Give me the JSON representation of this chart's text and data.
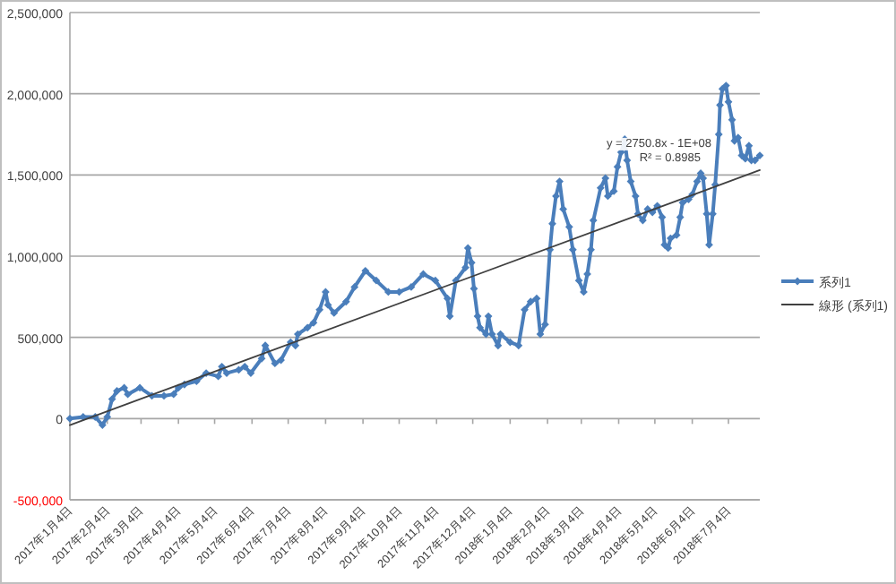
{
  "chart_data": {
    "type": "line",
    "ylim": [
      -500000,
      2500000
    ],
    "yticks": [
      {
        "value": -500000,
        "label": "-500,000"
      },
      {
        "value": 0,
        "label": "0"
      },
      {
        "value": 500000,
        "label": "500,000"
      },
      {
        "value": 1000000,
        "label": "1,000,000"
      },
      {
        "value": 1500000,
        "label": "1,500,000"
      },
      {
        "value": 2000000,
        "label": "2,000,000"
      },
      {
        "value": 2500000,
        "label": "2,500,000"
      }
    ],
    "xlim": [
      "2017-01-04",
      "2018-07-30"
    ],
    "xticks": [
      {
        "value": "2017-01-04",
        "label": "2017年1月4日"
      },
      {
        "value": "2017-02-04",
        "label": "2017年2月4日"
      },
      {
        "value": "2017-03-04",
        "label": "2017年3月4日"
      },
      {
        "value": "2017-04-04",
        "label": "2017年4月4日"
      },
      {
        "value": "2017-05-04",
        "label": "2017年5月4日"
      },
      {
        "value": "2017-06-04",
        "label": "2017年6月4日"
      },
      {
        "value": "2017-07-04",
        "label": "2017年7月4日"
      },
      {
        "value": "2017-08-04",
        "label": "2017年8月4日"
      },
      {
        "value": "2017-09-04",
        "label": "2017年9月4日"
      },
      {
        "value": "2017-10-04",
        "label": "2017年10月4日"
      },
      {
        "value": "2017-11-04",
        "label": "2017年11月4日"
      },
      {
        "value": "2017-12-04",
        "label": "2017年12月4日"
      },
      {
        "value": "2018-01-04",
        "label": "2018年1月4日"
      },
      {
        "value": "2018-02-04",
        "label": "2018年2月4日"
      },
      {
        "value": "2018-03-04",
        "label": "2018年3月4日"
      },
      {
        "value": "2018-04-04",
        "label": "2018年4月4日"
      },
      {
        "value": "2018-05-04",
        "label": "2018年5月4日"
      },
      {
        "value": "2018-06-04",
        "label": "2018年6月4日"
      },
      {
        "value": "2018-07-04",
        "label": "2018年7月4日"
      }
    ],
    "grid": "y",
    "legend": "right",
    "annotations": [
      "y = 2750.8x - 1E+08",
      "R² = 0.8985"
    ],
    "series": [
      {
        "name": "系列1",
        "color": "#4a7ebb",
        "marker": "diamond",
        "x": [
          "2017-01-04",
          "2017-01-15",
          "2017-01-25",
          "2017-01-31",
          "2017-02-04",
          "2017-02-08",
          "2017-02-12",
          "2017-02-18",
          "2017-02-21",
          "2017-03-03",
          "2017-03-13",
          "2017-03-23",
          "2017-03-31",
          "2017-04-04",
          "2017-04-09",
          "2017-04-19",
          "2017-04-27",
          "2017-05-07",
          "2017-05-10",
          "2017-05-14",
          "2017-05-24",
          "2017-05-29",
          "2017-06-03",
          "2017-06-12",
          "2017-06-15",
          "2017-06-23",
          "2017-06-28",
          "2017-07-06",
          "2017-07-10",
          "2017-07-12",
          "2017-07-20",
          "2017-07-25",
          "2017-07-30",
          "2017-08-04",
          "2017-08-06",
          "2017-08-11",
          "2017-08-21",
          "2017-08-28",
          "2017-09-06",
          "2017-09-15",
          "2017-09-25",
          "2017-10-04",
          "2017-10-14",
          "2017-10-24",
          "2017-11-03",
          "2017-11-13",
          "2017-11-15",
          "2017-11-20",
          "2017-11-28",
          "2017-11-30",
          "2017-12-03",
          "2017-12-05",
          "2017-12-08",
          "2017-12-10",
          "2017-12-15",
          "2017-12-17",
          "2017-12-20",
          "2017-12-25",
          "2017-12-27",
          "2018-01-04",
          "2018-01-11",
          "2018-01-16",
          "2018-01-21",
          "2018-01-26",
          "2018-01-29",
          "2018-02-02",
          "2018-02-06",
          "2018-02-08",
          "2018-02-11",
          "2018-02-14",
          "2018-02-17",
          "2018-02-22",
          "2018-02-25",
          "2018-03-02",
          "2018-03-06",
          "2018-03-09",
          "2018-03-12",
          "2018-03-14",
          "2018-03-20",
          "2018-03-24",
          "2018-03-26",
          "2018-03-31",
          "2018-04-03",
          "2018-04-06",
          "2018-04-09",
          "2018-04-11",
          "2018-04-14",
          "2018-04-18",
          "2018-04-20",
          "2018-04-24",
          "2018-04-28",
          "2018-05-02",
          "2018-05-06",
          "2018-05-10",
          "2018-05-12",
          "2018-05-15",
          "2018-05-17",
          "2018-05-22",
          "2018-05-25",
          "2018-05-27",
          "2018-06-01",
          "2018-06-04",
          "2018-06-08",
          "2018-06-11",
          "2018-06-13",
          "2018-06-16",
          "2018-06-18",
          "2018-06-21",
          "2018-06-23",
          "2018-06-26",
          "2018-06-27",
          "2018-06-29",
          "2018-07-02",
          "2018-07-04",
          "2018-07-07",
          "2018-07-09",
          "2018-07-12",
          "2018-07-15",
          "2018-07-18",
          "2018-07-21",
          "2018-07-23",
          "2018-07-26",
          "2018-07-30"
        ],
        "values": [
          0,
          10000,
          10000,
          -40000,
          10000,
          120000,
          170000,
          190000,
          150000,
          190000,
          140000,
          140000,
          150000,
          190000,
          210000,
          230000,
          280000,
          260000,
          320000,
          280000,
          300000,
          320000,
          280000,
          370000,
          450000,
          340000,
          360000,
          470000,
          450000,
          520000,
          560000,
          590000,
          670000,
          780000,
          700000,
          650000,
          720000,
          810000,
          910000,
          850000,
          780000,
          780000,
          810000,
          890000,
          850000,
          740000,
          630000,
          850000,
          930000,
          1050000,
          960000,
          800000,
          630000,
          560000,
          520000,
          630000,
          520000,
          450000,
          520000,
          470000,
          450000,
          670000,
          720000,
          740000,
          520000,
          580000,
          1040000,
          1200000,
          1370000,
          1460000,
          1290000,
          1180000,
          1040000,
          850000,
          780000,
          890000,
          1040000,
          1220000,
          1420000,
          1480000,
          1370000,
          1400000,
          1550000,
          1640000,
          1720000,
          1590000,
          1460000,
          1370000,
          1260000,
          1220000,
          1290000,
          1270000,
          1310000,
          1240000,
          1070000,
          1050000,
          1110000,
          1130000,
          1240000,
          1330000,
          1350000,
          1380000,
          1460000,
          1510000,
          1480000,
          1260000,
          1070000,
          1260000,
          1440000,
          1750000,
          1930000,
          2030000,
          2050000,
          1950000,
          1840000,
          1710000,
          1730000,
          1620000,
          1600000,
          1680000,
          1590000,
          1590000,
          1620000
        ]
      },
      {
        "name": "線形 (系列1)",
        "color": "#404040",
        "marker": "none",
        "x": [
          "2017-01-04",
          "2018-07-30"
        ],
        "values": [
          -40000,
          1530000
        ]
      }
    ]
  }
}
